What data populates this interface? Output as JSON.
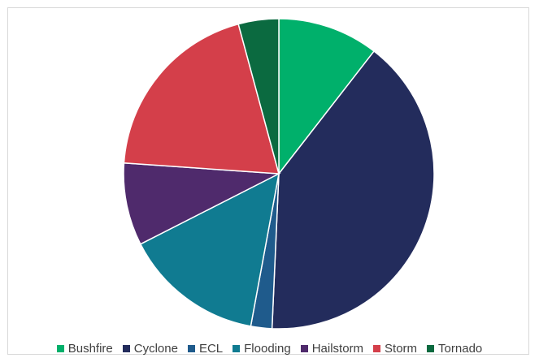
{
  "chart_data": {
    "type": "pie",
    "title": "",
    "start_angle_deg": 0,
    "direction": "clockwise",
    "legend_position": "bottom",
    "slices": [
      {
        "label": "Bushfire",
        "value": 10.5,
        "color": "#00b06b"
      },
      {
        "label": "Cyclone",
        "value": 40.2,
        "color": "#232c5c"
      },
      {
        "label": "ECL",
        "value": 2.2,
        "color": "#1f5b8c"
      },
      {
        "label": "Flooding",
        "value": 14.6,
        "color": "#107b91"
      },
      {
        "label": "Hailstorm",
        "value": 8.6,
        "color": "#4f2a6c"
      },
      {
        "label": "Storm",
        "value": 19.7,
        "color": "#d43f4a"
      },
      {
        "label": "Tornado",
        "value": 4.2,
        "color": "#0b6a40"
      }
    ]
  }
}
